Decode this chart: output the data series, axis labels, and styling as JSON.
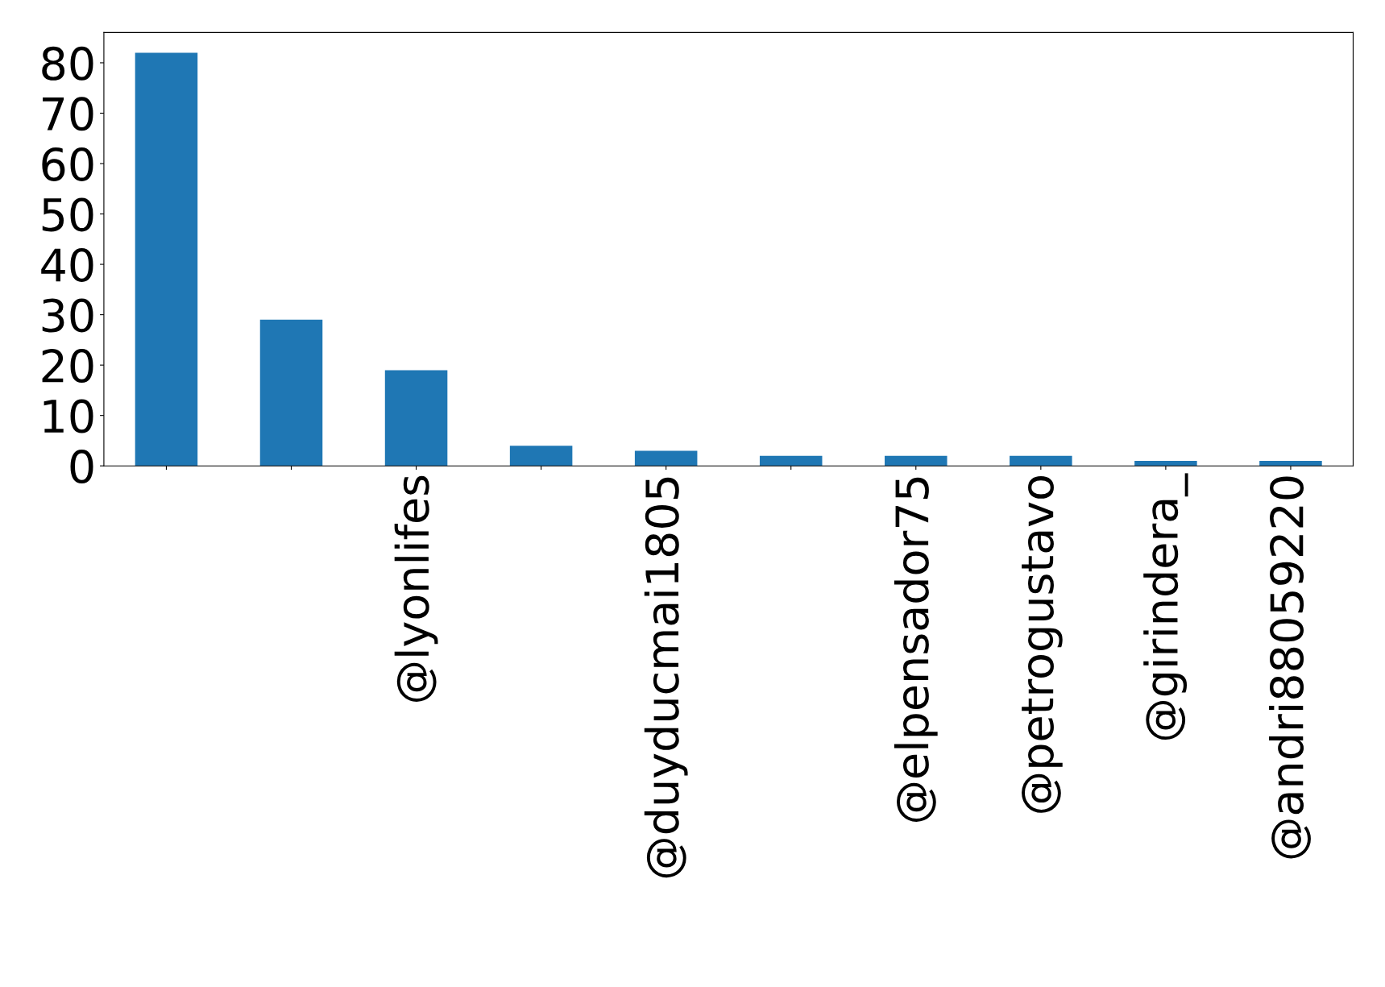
{
  "chart_data": {
    "type": "bar",
    "categories": [
      null,
      null,
      "@lyonlifes",
      null,
      "@duyducmai1805",
      null,
      "@elpensador75",
      "@petrogustavo",
      "@girindera_",
      "@andri88059220"
    ],
    "values": [
      82,
      29,
      19,
      4,
      3,
      2,
      2,
      2,
      1,
      1
    ],
    "color": "#1f77b4",
    "ylim": [
      0,
      86
    ],
    "yticks": [
      0,
      10,
      20,
      30,
      40,
      50,
      60,
      70,
      80
    ],
    "grid": false,
    "legend": false
  }
}
